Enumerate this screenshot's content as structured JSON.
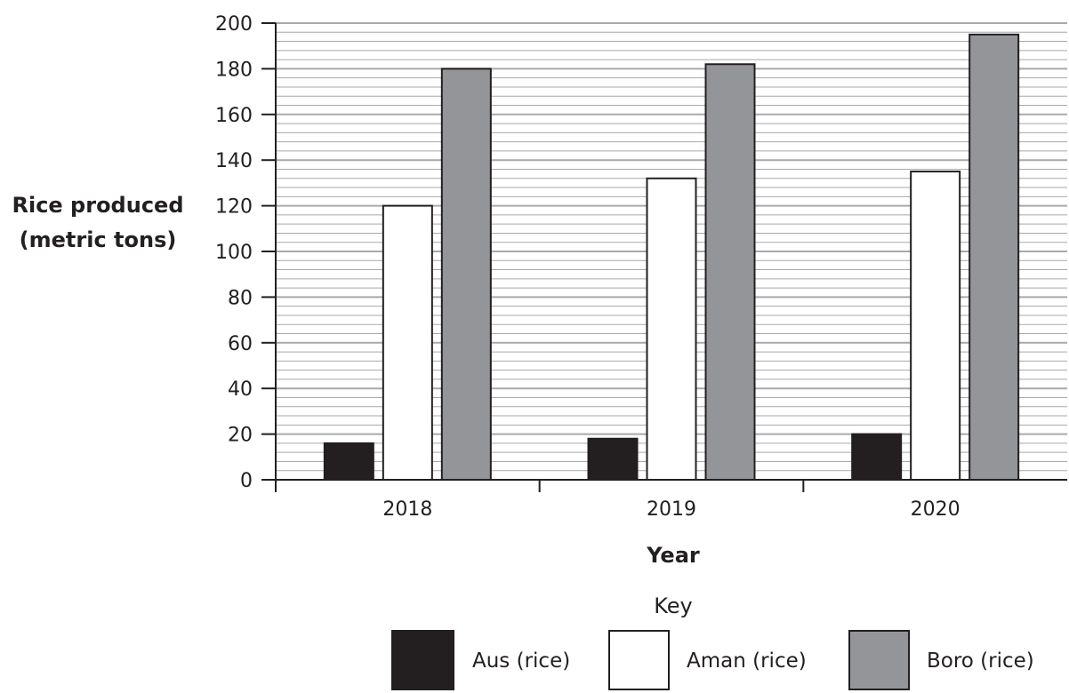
{
  "chart_data": {
    "type": "bar",
    "categories": [
      "2018",
      "2019",
      "2020"
    ],
    "series": [
      {
        "name": "Aus (rice)",
        "values": [
          16,
          18,
          20
        ],
        "color": "#231f20"
      },
      {
        "name": "Aman (rice)",
        "values": [
          120,
          132,
          135
        ],
        "color": "#ffffff"
      },
      {
        "name": "Boro (rice)",
        "values": [
          180,
          182,
          195
        ],
        "color": "#939598"
      }
    ],
    "xlabel": "Year",
    "ylabel_lines": [
      "Rice produced",
      "(metric tons)"
    ],
    "ylim": [
      0,
      200
    ],
    "yticks": [
      "0",
      "20",
      "40",
      "60",
      "80",
      "100",
      "120",
      "140",
      "160",
      "180",
      "200"
    ],
    "ytick_values": [
      0,
      20,
      40,
      60,
      80,
      100,
      120,
      140,
      160,
      180,
      200
    ],
    "minor_gridline_step": 4,
    "grid": true,
    "legend": {
      "title": "Key",
      "placement": "bottom-right"
    },
    "gridline_color": "#a7a9ac",
    "axis_color": "#231f20"
  }
}
